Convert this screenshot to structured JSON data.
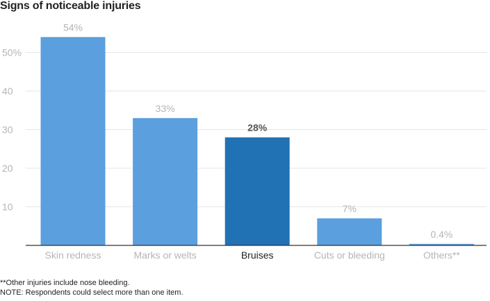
{
  "chart_data": {
    "type": "bar",
    "title": "Signs of noticeable injuries",
    "categories": [
      "Skin redness",
      "Marks or welts",
      "Bruises",
      "Cuts or bleeding",
      "Others**"
    ],
    "values": [
      54,
      33,
      28,
      7,
      0.4
    ],
    "value_labels": [
      "54%",
      "33%",
      "28%",
      "7%",
      "0.4%"
    ],
    "highlighted_index": 2,
    "ylim": [
      0,
      57
    ],
    "y_ticks": [
      10,
      20,
      30,
      40,
      50
    ],
    "y_tick_labels": [
      "10",
      "20",
      "30",
      "40",
      "50%"
    ],
    "grid": true,
    "xlabel": "",
    "ylabel": "",
    "colors": {
      "bar": "#5b9fdf",
      "bar_highlight": "#2171b5",
      "label": "#b5b5b5",
      "label_highlight": "#555555",
      "category_highlight": "#222222",
      "grid": "#e6e6e6",
      "axis": "#333333"
    }
  },
  "notes": [
    "**Other injuries include nose bleeding.",
    "NOTE: Respondents could select more than one item."
  ]
}
